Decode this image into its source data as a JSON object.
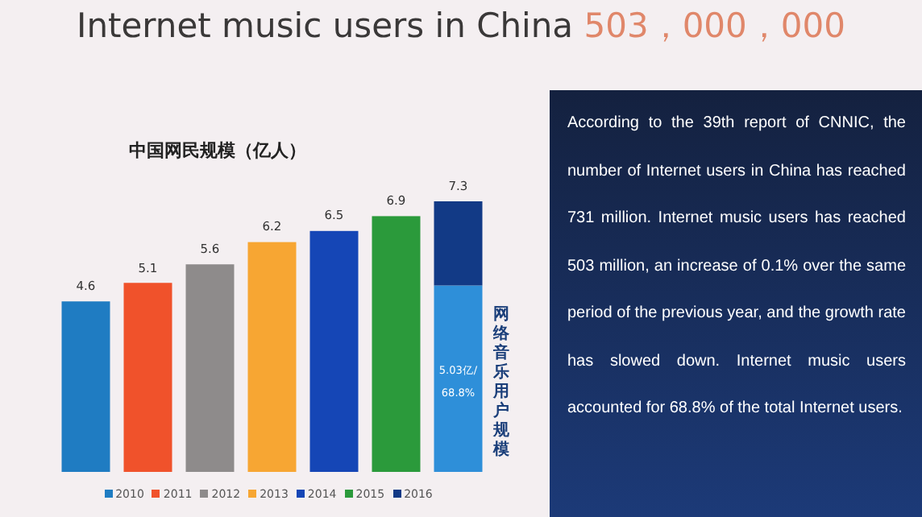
{
  "chart_data": {
    "type": "bar",
    "title": "中国网民规模（亿人）",
    "stacked": true,
    "legend": "bottom",
    "categories": [
      null,
      null,
      null,
      null,
      null,
      null,
      null
    ],
    "series": [
      {
        "color": "#2e8fd9",
        "values": [
          null,
          null,
          null,
          null,
          null,
          null,
          5.03
        ],
        "value_labels": [
          null,
          null,
          null,
          null,
          null,
          null,
          "5.03亿/68.8%"
        ]
      },
      {
        "name": "2010",
        "color": "#1f7cc2",
        "values": [
          4.6,
          null,
          null,
          null,
          null,
          null,
          null
        ]
      },
      {
        "name": "2011",
        "color": "#f0522b",
        "values": [
          null,
          5.1,
          null,
          null,
          null,
          null,
          null
        ]
      },
      {
        "name": "2012",
        "color": "#8e8b8b",
        "values": [
          null,
          null,
          5.6,
          null,
          null,
          null,
          null
        ]
      },
      {
        "name": "2013",
        "color": "#f7a633",
        "values": [
          null,
          null,
          null,
          6.2,
          null,
          null,
          null
        ]
      },
      {
        "name": "2014",
        "color": "#1546b6",
        "values": [
          null,
          null,
          null,
          null,
          6.5,
          null,
          null
        ]
      },
      {
        "name": "2015",
        "color": "#2b9a3b",
        "values": [
          null,
          null,
          null,
          null,
          null,
          6.9,
          null
        ]
      },
      {
        "name": "2016",
        "color": "#123a86",
        "values": [
          null,
          null,
          null,
          null,
          null,
          null,
          2.27
        ]
      }
    ],
    "totals": [
      "4.6",
      "5.1",
      "5.6",
      "6.2",
      "6.5",
      "6.9",
      "7.3"
    ],
    "annotations": [
      "Internet music users in China",
      "503，000，000",
      "According to the 39th report of CNNIC, the number of Internet users in China has reached 731 million. Internet music users has reached 503 million, an increase of 0.1% over the same period of the previous year, and the growth rate has slowed down. Internet music users accounted for 68.8% of the total Internet users.",
      "网络音乐用户规模"
    ]
  }
}
